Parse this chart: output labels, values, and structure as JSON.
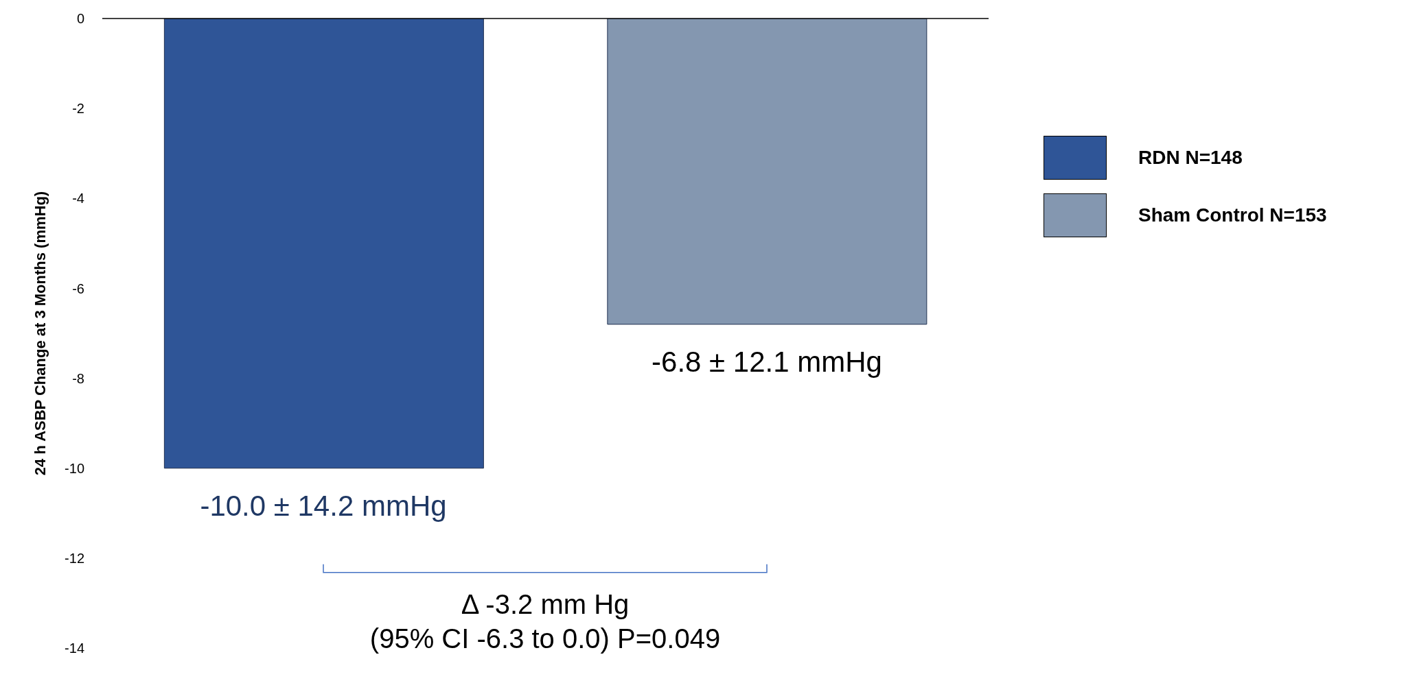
{
  "chart_data": {
    "type": "bar",
    "ylabel": "24 h ASBP Change at 3 Months (mmHg)",
    "categories": [
      null,
      null
    ],
    "series": [
      {
        "name": "RDN N=148",
        "color": "#2f5597",
        "values": [
          -10.0,
          null
        ],
        "value_labels": [
          "-10.0 ± 14.2 mmHg",
          null
        ]
      },
      {
        "name": "Sham Control N=153",
        "color": "#8497b0",
        "values": [
          null,
          -6.8
        ],
        "value_labels": [
          null,
          "-6.8 ± 12.1 mmHg"
        ]
      }
    ],
    "ylim": [
      -14,
      0
    ],
    "yticks": [
      0,
      -2,
      -4,
      -6,
      -8,
      -10,
      -12,
      -14
    ],
    "grid": false,
    "legend": "right",
    "annotations": [
      "Δ -3.2 mm Hg\n(95% CI -6.3 to 0.0) P=0.049"
    ]
  }
}
